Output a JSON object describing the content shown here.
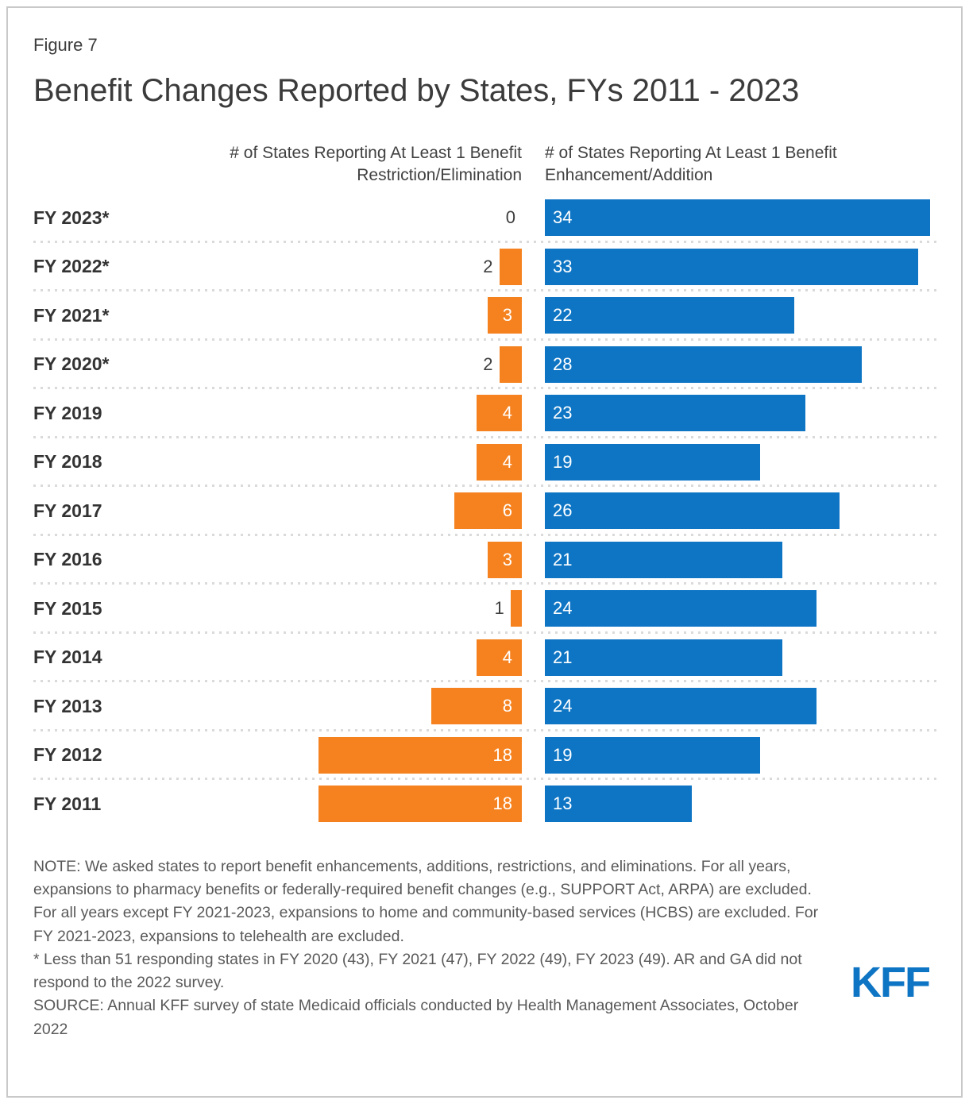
{
  "figure_label": "Figure 7",
  "title": "Benefit Changes Reported by States, FYs 2011 - 2023",
  "logo_text": "KFF",
  "colors": {
    "restriction_orange": "#F5821F",
    "enhancement_blue": "#0E75C4"
  },
  "notes": {
    "note": "NOTE: We asked states to report benefit enhancements, additions, restrictions, and eliminations. For all years, expansions to pharmacy benefits or federally-required benefit changes (e.g., SUPPORT Act, ARPA) are excluded. For all years except FY 2021-2023, expansions to home and community-based services (HCBS) are excluded. For FY 2021-2023, expansions to telehealth are excluded.",
    "asterisk": "* Less than 51 responding states in FY 2020 (43), FY 2021 (47), FY 2022 (49), FY 2023 (49). AR and GA did not respond to the 2022 survey.",
    "source": "SOURCE: Annual KFF survey of state Medicaid officials conducted by Health Management Associates, October 2022"
  },
  "chart_data": {
    "type": "bar",
    "orientation": "horizontal",
    "layout": "two-column diverging bars with dotted row separators, value labels on bars",
    "categories": [
      "FY 2023*",
      "FY 2022*",
      "FY 2021*",
      "FY 2020*",
      "FY 2019",
      "FY 2018",
      "FY 2017",
      "FY 2016",
      "FY 2015",
      "FY 2014",
      "FY 2013",
      "FY 2012",
      "FY 2011"
    ],
    "series": [
      {
        "name": "# of States Reporting At Least 1 Benefit Restriction/Elimination",
        "color": "#F5821F",
        "values": [
          0,
          2,
          3,
          2,
          4,
          4,
          6,
          3,
          1,
          4,
          8,
          18,
          18
        ]
      },
      {
        "name": "# of States Reporting At Least 1 Benefit Enhancement/Addition",
        "color": "#0E75C4",
        "values": [
          34,
          33,
          22,
          28,
          23,
          19,
          26,
          21,
          24,
          21,
          24,
          19,
          13
        ]
      }
    ],
    "xlim": [
      0,
      34
    ],
    "value_labels": true,
    "label_rule": "values less than 3 shown outside bar in gray; otherwise white inside bar"
  }
}
